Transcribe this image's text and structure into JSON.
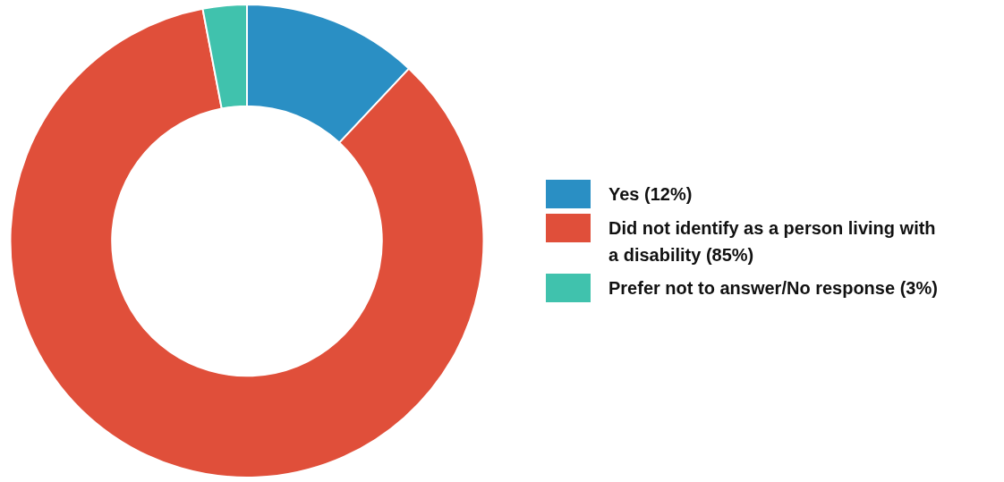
{
  "chart_data": {
    "type": "donut",
    "categories": [
      "Yes (12%)",
      "Did not identify as a person living with a disability (85%)",
      "Prefer not to answer/No response (3%)"
    ],
    "values": [
      12,
      85,
      3
    ],
    "colors": [
      "#2a8fc4",
      "#e04f3a",
      "#40c2ad"
    ],
    "legend": "right"
  }
}
